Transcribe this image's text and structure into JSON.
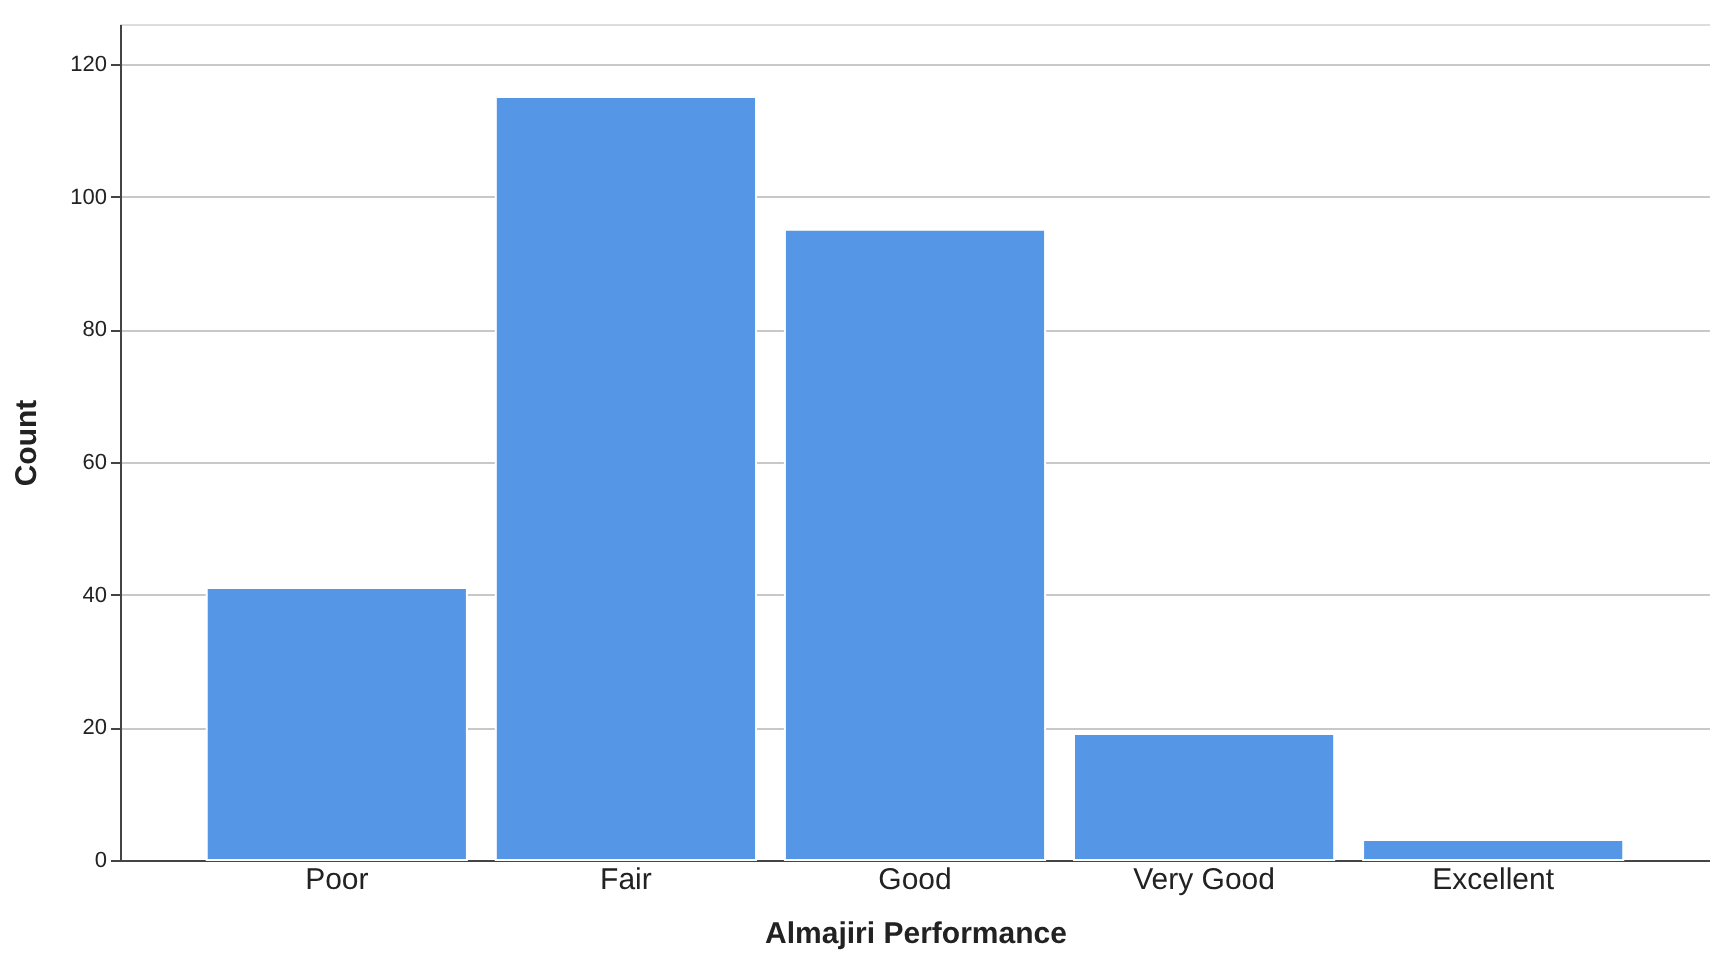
{
  "chart_data": {
    "type": "bar",
    "xlabel": "Almajiri Performance",
    "ylabel": "Count",
    "categories": [
      "Poor",
      "Fair",
      "Good",
      "Very Good",
      "Excellent"
    ],
    "values": [
      41,
      115,
      95,
      19,
      3
    ],
    "color": "#5596e6",
    "ylim": [
      0,
      126
    ],
    "yticks": [
      0,
      20,
      40,
      60,
      80,
      100,
      120
    ],
    "grid": "y"
  }
}
